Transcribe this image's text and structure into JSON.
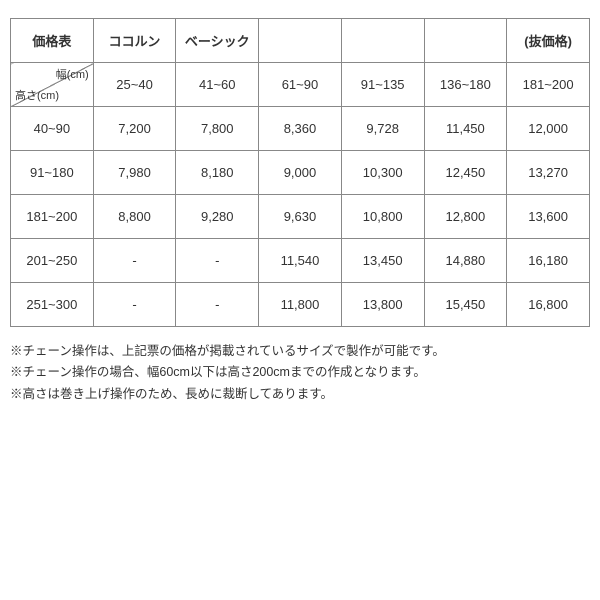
{
  "table": {
    "header_row": [
      "価格表",
      "ココルン",
      "ベーシック",
      "",
      "",
      "",
      "(抜価格)"
    ],
    "diag": {
      "top": "幅(cm)",
      "bottom": "高さ(cm)"
    },
    "width_ranges": [
      "25~40",
      "41~60",
      "61~90",
      "91~135",
      "136~180",
      "181~200"
    ],
    "rows": [
      {
        "label": "40~90",
        "cells": [
          "7,200",
          "7,800",
          "8,360",
          "9,728",
          "11,450",
          "12,000"
        ]
      },
      {
        "label": "91~180",
        "cells": [
          "7,980",
          "8,180",
          "9,000",
          "10,300",
          "12,450",
          "13,270"
        ]
      },
      {
        "label": "181~200",
        "cells": [
          "8,800",
          "9,280",
          "9,630",
          "10,800",
          "12,800",
          "13,600"
        ]
      },
      {
        "label": "201~250",
        "cells": [
          "-",
          "-",
          "11,540",
          "13,450",
          "14,880",
          "16,180"
        ]
      },
      {
        "label": "251~300",
        "cells": [
          "-",
          "-",
          "11,800",
          "13,800",
          "15,450",
          "16,800"
        ]
      }
    ],
    "colors": {
      "border": "#888888",
      "text": "#333333",
      "background": "#ffffff"
    }
  },
  "notes": [
    "※チェーン操作は、上記票の価格が掲載されているサイズで製作が可能です。",
    "※チェーン操作の場合、幅60cm以下は高さ200cmまでの作成となります。",
    "※高さは巻き上げ操作のため、長めに裁断してあります。"
  ]
}
